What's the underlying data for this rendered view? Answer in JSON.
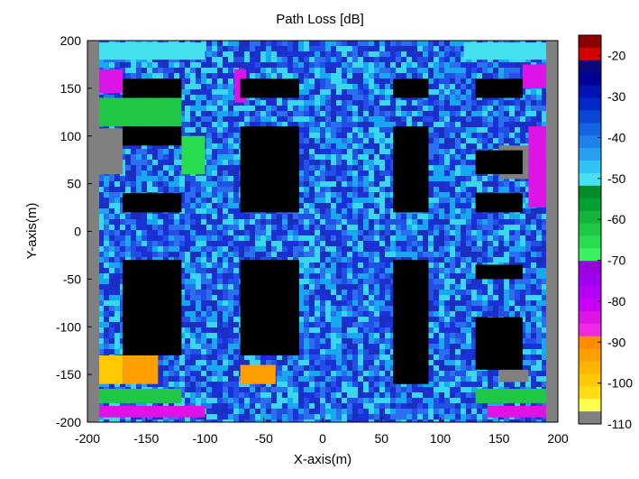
{
  "chart_data": {
    "type": "heatmap",
    "title": "Path Loss [dB]",
    "xlabel": "X-axis(m)",
    "ylabel": "Y-axis(m)",
    "xlim": [
      -200,
      200
    ],
    "ylim": [
      -200,
      200
    ],
    "xticks": [
      -200,
      -150,
      -100,
      -50,
      0,
      50,
      100,
      150,
      200
    ],
    "yticks": [
      200,
      150,
      100,
      50,
      0,
      -50,
      -100,
      -150,
      -200
    ],
    "colorbar": {
      "range": [
        -110,
        -15
      ],
      "ticks": [
        -20,
        -30,
        -40,
        -50,
        -60,
        -70,
        -80,
        -90,
        -100,
        -110
      ],
      "colors": [
        "#8b0000",
        "#d40000",
        "#0a0a7a",
        "#000096",
        "#0014b4",
        "#0028c8",
        "#0a46d2",
        "#1464e1",
        "#1e82eb",
        "#28a0f0",
        "#32c3f5",
        "#46e1f0",
        "#008c28",
        "#00a032",
        "#14b43c",
        "#1ec846",
        "#28dc50",
        "#3cf064",
        "#9600dc",
        "#a000f0",
        "#b400f5",
        "#c800f5",
        "#dc14e6",
        "#f028e6",
        "#ff8c00",
        "#ffa000",
        "#ffb400",
        "#ffc800",
        "#ffdc14",
        "#ffff50",
        "#808080"
      ]
    },
    "background": {
      "noise_colors": [
        "#1a30d8",
        "#2250e6",
        "#2c6ef0",
        "#18a8f0",
        "#3ad8f0",
        "#1c2ec0"
      ]
    },
    "no_coverage_areas": [
      {
        "x0": -200,
        "x1": -190,
        "y0": -200,
        "y1": 200
      },
      {
        "x0": 190,
        "x1": 200,
        "y0": -200,
        "y1": 200
      },
      {
        "x0": -190,
        "x1": -170,
        "y0": 60,
        "y1": 108
      },
      {
        "x0": 150,
        "x1": 175,
        "y0": 55,
        "y1": 90
      },
      {
        "x0": 150,
        "x1": 175,
        "y0": -158,
        "y1": -145
      }
    ],
    "colored_regions": [
      {
        "x0": -190,
        "x1": -170,
        "y0": -160,
        "y1": -130,
        "color": "#ffc800"
      },
      {
        "x0": -170,
        "x1": -140,
        "y0": -160,
        "y1": -130,
        "color": "#ffa000"
      },
      {
        "x0": -70,
        "x1": -40,
        "y0": -160,
        "y1": -140,
        "color": "#ffa000"
      },
      {
        "x0": -190,
        "x1": -170,
        "y0": 145,
        "y1": 170,
        "color": "#dc14e6"
      },
      {
        "x0": -190,
        "x1": -120,
        "y0": 110,
        "y1": 140,
        "color": "#1ec846"
      },
      {
        "x0": -190,
        "x1": -120,
        "y0": -180,
        "y1": -165,
        "color": "#1ec846"
      },
      {
        "x0": -190,
        "x1": -100,
        "y0": -195,
        "y1": -183,
        "color": "#dc14e6"
      },
      {
        "x0": -120,
        "x1": -100,
        "y0": 60,
        "y1": 100,
        "color": "#28dc50"
      },
      {
        "x0": -75,
        "x1": -65,
        "y0": 135,
        "y1": 170,
        "color": "#dc14e6"
      },
      {
        "x0": 170,
        "x1": 190,
        "y0": 150,
        "y1": 175,
        "color": "#dc14e6"
      },
      {
        "x0": 175,
        "x1": 190,
        "y0": 25,
        "y1": 110,
        "color": "#dc14e6"
      },
      {
        "x0": 130,
        "x1": 190,
        "y0": -180,
        "y1": -165,
        "color": "#1ec846"
      },
      {
        "x0": 140,
        "x1": 190,
        "y0": -195,
        "y1": -183,
        "color": "#dc14e6"
      },
      {
        "x0": -190,
        "x1": -100,
        "y0": 180,
        "y1": 198,
        "color": "#46e1f0"
      },
      {
        "x0": 120,
        "x1": 190,
        "y0": 180,
        "y1": 198,
        "color": "#46e1f0"
      }
    ],
    "buildings": [
      {
        "x0": -170,
        "x1": -120,
        "y0": 140,
        "y1": 160
      },
      {
        "x0": -70,
        "x1": -20,
        "y0": 140,
        "y1": 160
      },
      {
        "x0": 60,
        "x1": 90,
        "y0": 140,
        "y1": 160
      },
      {
        "x0": 130,
        "x1": 170,
        "y0": 140,
        "y1": 160
      },
      {
        "x0": -170,
        "x1": -120,
        "y0": 90,
        "y1": 110
      },
      {
        "x0": -70,
        "x1": -20,
        "y0": 20,
        "y1": 110
      },
      {
        "x0": 60,
        "x1": 90,
        "y0": 20,
        "y1": 110
      },
      {
        "x0": 130,
        "x1": 170,
        "y0": 60,
        "y1": 85
      },
      {
        "x0": -170,
        "x1": -120,
        "y0": 20,
        "y1": 40
      },
      {
        "x0": 130,
        "x1": 170,
        "y0": 20,
        "y1": 40
      },
      {
        "x0": -170,
        "x1": -120,
        "y0": -130,
        "y1": -30
      },
      {
        "x0": -70,
        "x1": -20,
        "y0": -130,
        "y1": -30
      },
      {
        "x0": 60,
        "x1": 90,
        "y0": -160,
        "y1": -30
      },
      {
        "x0": 130,
        "x1": 170,
        "y0": -50,
        "y1": -35
      },
      {
        "x0": 130,
        "x1": 170,
        "y0": -145,
        "y1": -90
      }
    ]
  }
}
